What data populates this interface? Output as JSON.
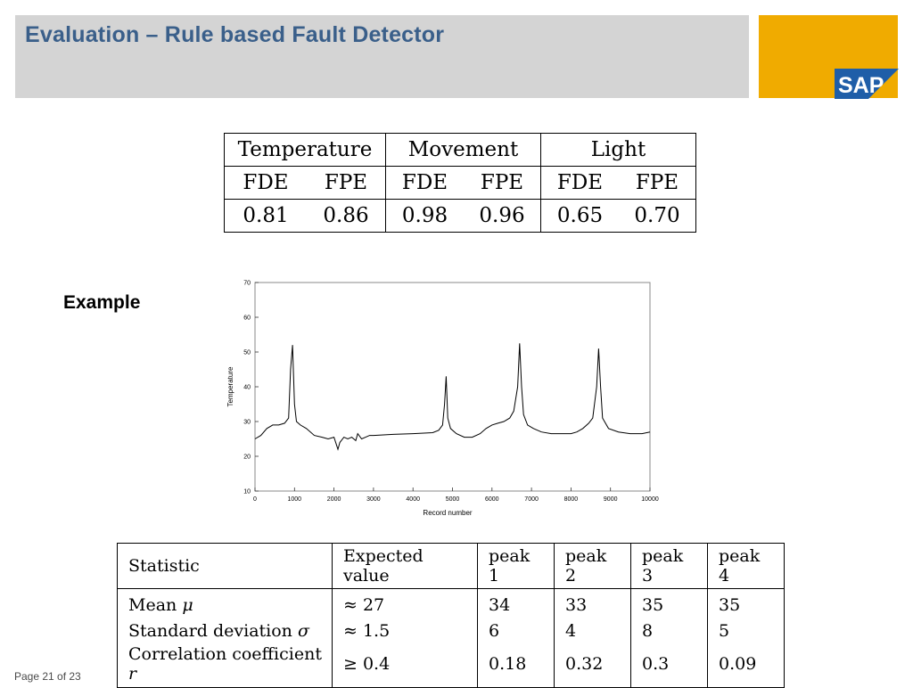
{
  "slide": {
    "title": "Evaluation – Rule based Fault Detector"
  },
  "logo": {
    "text": "SAP"
  },
  "performance_table": {
    "groups": [
      "Temperature",
      "Movement",
      "Light"
    ],
    "metrics": [
      "FDE",
      "FPE"
    ],
    "values": [
      "0.81",
      "0.86",
      "0.98",
      "0.96",
      "0.65",
      "0.70"
    ]
  },
  "example_label": "Example",
  "chart_data": {
    "type": "line",
    "xlabel": "Record number",
    "ylabel": "Temperature",
    "xlim": [
      0,
      10000
    ],
    "ylim": [
      10,
      70
    ],
    "x_ticks": [
      0,
      1000,
      2000,
      3000,
      4000,
      5000,
      6000,
      7000,
      8000,
      9000,
      10000
    ],
    "y_ticks": [
      10,
      20,
      30,
      40,
      50,
      60,
      70
    ],
    "grid": false,
    "series": [
      {
        "x": [
          0,
          150,
          300,
          450,
          600,
          750,
          850,
          900,
          950,
          1000,
          1050,
          1150,
          1300,
          1500,
          1700,
          1850,
          2000,
          2100,
          2150,
          2250,
          2350,
          2450,
          2550,
          2600,
          2700,
          2800,
          2900,
          3000,
          3500,
          4000,
          4500,
          4650,
          4750,
          4800,
          4840,
          4880,
          4950,
          5100,
          5300,
          5500,
          5700,
          5850,
          6000,
          6150,
          6300,
          6450,
          6550,
          6650,
          6700,
          6750,
          6800,
          6900,
          7050,
          7250,
          7500,
          7750,
          8000,
          8150,
          8300,
          8450,
          8550,
          8650,
          8700,
          8750,
          8800,
          8950,
          9200,
          9500,
          9800,
          10000
        ],
        "y": [
          25,
          26,
          28,
          29,
          29,
          29.5,
          31,
          45,
          52,
          35,
          30,
          29,
          28,
          26,
          25.5,
          25,
          25.5,
          22,
          24,
          25.5,
          25,
          25.5,
          24.5,
          26.5,
          25,
          25.5,
          26,
          26,
          26.3,
          26.5,
          26.8,
          27.5,
          29,
          35,
          43,
          31,
          28,
          26.5,
          25.5,
          25.5,
          26.5,
          28,
          29,
          29.5,
          30,
          31,
          33,
          40,
          52.5,
          40,
          32,
          29,
          28,
          27,
          26.5,
          26.5,
          26.5,
          27,
          28,
          29.5,
          31,
          40,
          51,
          40,
          31,
          28,
          27,
          26.5,
          26.5,
          27
        ]
      }
    ]
  },
  "stats_table": {
    "headers": [
      "Statistic",
      "Expected value",
      "peak 1",
      "peak 2",
      "peak 3",
      "peak 4"
    ],
    "rows": [
      {
        "stat": "Mean",
        "sym": "μ",
        "expected": "≈ 27",
        "peaks": [
          "34",
          "33",
          "35",
          "35"
        ]
      },
      {
        "stat": "Standard deviation",
        "sym": "σ",
        "expected": "≈ 1.5",
        "peaks": [
          "6",
          "4",
          "8",
          "5"
        ]
      },
      {
        "stat": "Correlation coefficient",
        "sym": "r",
        "expected": "≥ 0.4",
        "peaks": [
          "0.18",
          "0.32",
          "0.3",
          "0.09"
        ]
      }
    ]
  },
  "footer": {
    "page": "Page 21 of 23"
  }
}
